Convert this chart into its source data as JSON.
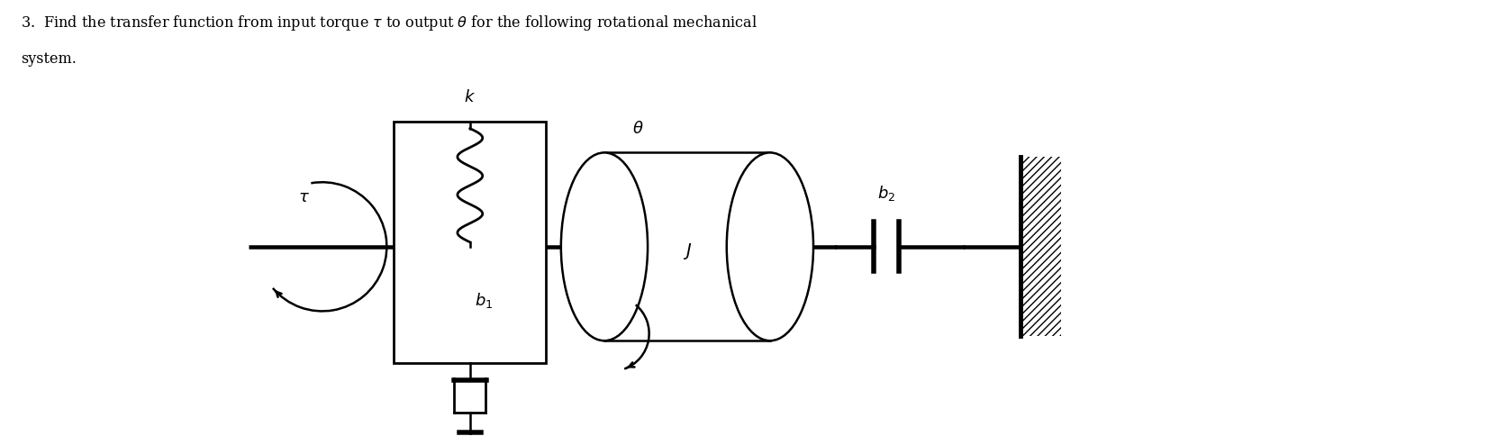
{
  "bg_color": "#ffffff",
  "line_color": "#000000",
  "label_tau": "$\\tau$",
  "label_k": "$k$",
  "label_theta": "$\\theta$",
  "label_b1": "$b_1$",
  "label_b2": "$b_2$",
  "label_J": "$J$",
  "figsize": [
    16.72,
    4.84
  ],
  "dpi": 100,
  "title1": "3.  Find the transfer function from input torque $\\tau$ to output $\\theta$ for the following rotational mechanical",
  "title2": "system."
}
